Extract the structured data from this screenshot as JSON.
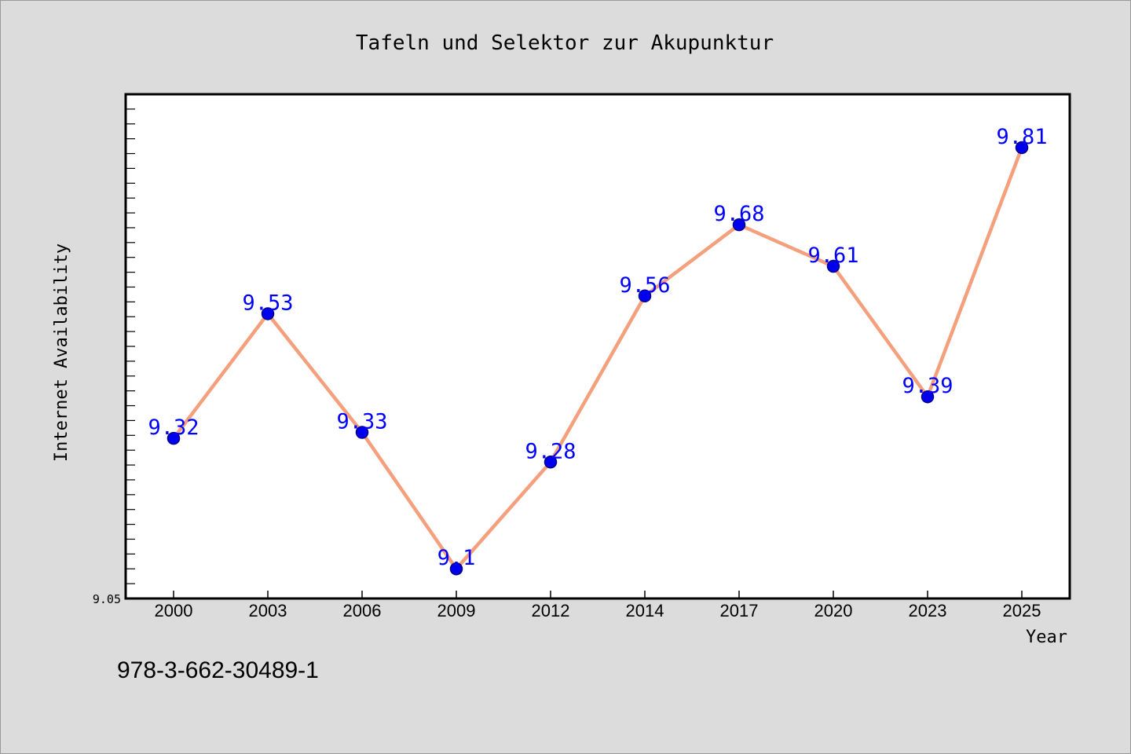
{
  "chart_data": {
    "type": "line",
    "title": "Tafeln und Selektor zur Akupunktur",
    "xlabel": "Year",
    "ylabel": "Internet Availability",
    "categories": [
      "2000",
      "2003",
      "2006",
      "2009",
      "2012",
      "2014",
      "2017",
      "2020",
      "2023",
      "2025"
    ],
    "series": [
      {
        "values": [
          9.32,
          9.53,
          9.33,
          9.1,
          9.28,
          9.56,
          9.68,
          9.61,
          9.39,
          9.81
        ],
        "data_labels": [
          "9.32",
          "9.53",
          "9.33",
          "9.1",
          "9.28",
          "9.56",
          "9.68",
          "9.61",
          "9.39",
          "9.81"
        ]
      }
    ],
    "ylim": [
      9.05,
      9.9
    ],
    "ytick_labels": [
      "9.05"
    ],
    "grid": false,
    "colors": {
      "line": "#f4a07c",
      "marker": "#0000ee",
      "marker_edge": "#00008b",
      "data_label": "#0000ff",
      "plot_bg": "#ffffff",
      "figure_bg": "#dcdcdc"
    }
  },
  "footer": {
    "isbn": "978-3-662-30489-1"
  }
}
